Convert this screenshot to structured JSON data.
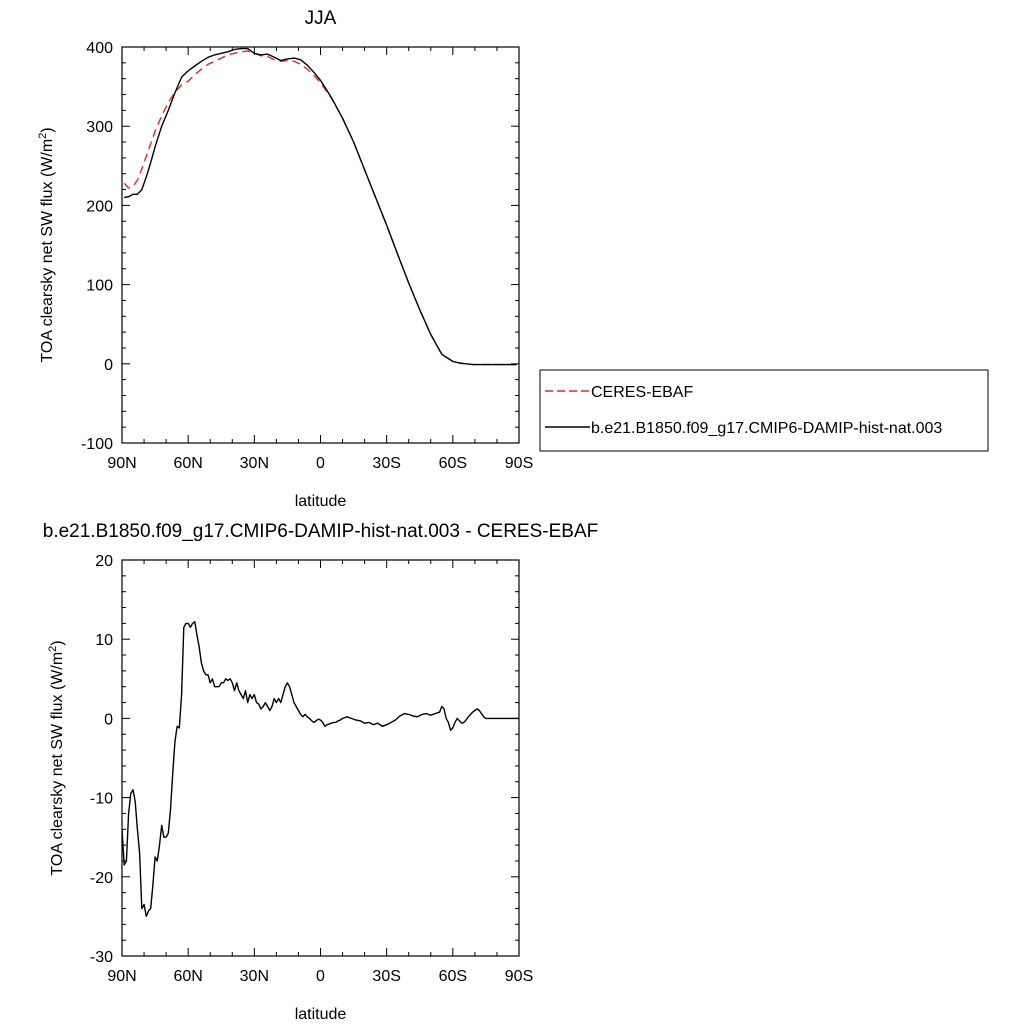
{
  "chart_data": [
    {
      "type": "line",
      "title": "JJA",
      "xlabel": "latitude",
      "ylabel": "TOA clearsky net SW flux (W/m",
      "ylabel_sup": "2",
      "ylabel_close": ")",
      "xlim": [
        90,
        -90
      ],
      "ylim": [
        -100,
        400
      ],
      "xticks": [
        90,
        60,
        30,
        0,
        -30,
        -60,
        -90
      ],
      "xticklabels": [
        "90N",
        "60N",
        "30N",
        "0",
        "30S",
        "60S",
        "90S"
      ],
      "yticks": [
        -100,
        0,
        100,
        200,
        300,
        400
      ],
      "yticklabels": [
        "-100",
        "0",
        "100",
        "200",
        "300",
        "400"
      ],
      "legend_position": "right",
      "grid": false,
      "series": [
        {
          "name": "CERES-EBAF",
          "color": "#e8262b",
          "dash": "dashed",
          "x": [
            89,
            87,
            85,
            83,
            81,
            79,
            77,
            75,
            72,
            69,
            66,
            63,
            60,
            57,
            54,
            51,
            48,
            45,
            42,
            39,
            36,
            33,
            30,
            27,
            24,
            21,
            18,
            15,
            12,
            9,
            6,
            3,
            0,
            -5,
            -10,
            -15,
            -20,
            -25,
            -30,
            -35,
            -40,
            -45,
            -50,
            -55,
            -60,
            -63,
            -66,
            -69,
            -72,
            -75,
            -80,
            -85,
            -89
          ],
          "y": [
            228,
            222,
            224,
            232,
            246,
            262,
            278,
            294,
            313,
            330,
            343,
            352,
            357,
            365,
            372,
            378,
            382,
            386,
            390,
            392,
            394,
            395,
            392,
            389,
            388,
            384,
            382,
            383,
            382,
            378,
            372,
            364,
            355,
            335,
            310,
            280,
            245,
            210,
            175,
            138,
            102,
            68,
            37,
            12,
            3,
            1,
            0,
            -1,
            -1,
            -1,
            -1,
            -1,
            -1
          ]
        },
        {
          "name": "b.e21.B1850.f09_g17.CMIP6-DAMIP-hist-nat.003",
          "color": "#000000",
          "dash": "solid",
          "x": [
            89,
            87,
            85,
            83,
            81,
            79,
            77,
            75,
            72,
            69,
            66,
            63,
            60,
            57,
            54,
            51,
            48,
            45,
            42,
            39,
            36,
            33,
            30,
            27,
            24,
            21,
            18,
            15,
            12,
            9,
            6,
            3,
            0,
            -5,
            -10,
            -15,
            -20,
            -25,
            -30,
            -35,
            -40,
            -45,
            -50,
            -55,
            -60,
            -63,
            -66,
            -69,
            -72,
            -75,
            -80,
            -85,
            -89
          ],
          "y": [
            210,
            211,
            214,
            214,
            220,
            236,
            254,
            274,
            300,
            320,
            342,
            362,
            370,
            376,
            382,
            387,
            390,
            392,
            394,
            397,
            398,
            398,
            392,
            390,
            391,
            387,
            383,
            385,
            386,
            384,
            377,
            368,
            358,
            336,
            310,
            280,
            245,
            210,
            175,
            138,
            102,
            68,
            37,
            12,
            3,
            1,
            0,
            -1,
            -1,
            -1,
            -1,
            -1,
            -1
          ]
        }
      ]
    },
    {
      "type": "line",
      "title": "b.e21.B1850.f09_g17.CMIP6-DAMIP-hist-nat.003 - CERES-EBAF",
      "xlabel": "latitude",
      "ylabel": "TOA clearsky net SW flux (W/m",
      "ylabel_sup": "2",
      "ylabel_close": ")",
      "xlim": [
        90,
        -90
      ],
      "ylim": [
        -30,
        20
      ],
      "xticks": [
        90,
        60,
        30,
        0,
        -30,
        -60,
        -90
      ],
      "xticklabels": [
        "90N",
        "60N",
        "30N",
        "0",
        "30S",
        "60S",
        "90S"
      ],
      "yticks": [
        -30,
        -20,
        -10,
        0,
        10,
        20
      ],
      "yticklabels": [
        "-30",
        "-20",
        "-10",
        "0",
        "10",
        "20"
      ],
      "grid": false,
      "series": [
        {
          "name": "",
          "color": "#000000",
          "dash": "solid",
          "x": [
            90,
            89,
            88,
            87,
            86,
            85,
            84,
            83,
            82,
            81,
            80,
            79,
            78,
            77,
            76,
            75,
            74,
            73,
            72,
            71,
            70,
            69,
            68,
            67,
            66,
            65,
            64,
            63,
            62,
            61,
            60,
            59,
            58,
            57,
            56,
            55,
            54,
            53,
            52,
            51,
            50,
            49,
            48,
            47,
            46,
            45,
            44,
            43,
            42,
            41,
            40,
            39,
            38,
            37,
            36,
            35,
            34,
            33,
            32,
            31,
            30,
            29,
            28,
            27,
            26,
            25,
            24,
            23,
            22,
            21,
            20,
            19,
            18,
            17,
            16,
            15,
            14,
            13,
            12,
            11,
            10,
            9,
            8,
            7,
            6,
            5,
            4,
            3,
            2,
            1,
            0,
            -1,
            -2,
            -3,
            -4,
            -5,
            -6,
            -7,
            -8,
            -9,
            -10,
            -12,
            -14,
            -16,
            -18,
            -20,
            -22,
            -24,
            -26,
            -28,
            -30,
            -32,
            -34,
            -36,
            -38,
            -40,
            -42,
            -44,
            -46,
            -48,
            -50,
            -52,
            -54,
            -55,
            -56,
            -57,
            -58,
            -59,
            -60,
            -61,
            -62,
            -63,
            -64,
            -65,
            -66,
            -67,
            -68,
            -69,
            -70,
            -71,
            -72,
            -73,
            -74,
            -75,
            -76,
            -77,
            -78,
            -80,
            -82,
            -84,
            -86,
            -88,
            -90
          ],
          "y": [
            -14.0,
            -18.5,
            -18.0,
            -12.0,
            -9.5,
            -9.0,
            -10.5,
            -14.0,
            -17.0,
            -24.0,
            -23.5,
            -25.0,
            -24.3,
            -24.0,
            -21.0,
            -17.5,
            -18.0,
            -16.0,
            -13.5,
            -15.0,
            -15.0,
            -14.5,
            -11.5,
            -7.0,
            -3.0,
            -1.0,
            -1.2,
            3.0,
            11.5,
            12.0,
            12.0,
            11.5,
            12.0,
            12.2,
            10.5,
            9.0,
            7.0,
            6.0,
            5.5,
            5.5,
            4.5,
            5.0,
            4.0,
            4.0,
            4.0,
            4.5,
            4.5,
            5.0,
            4.8,
            5.0,
            4.5,
            3.5,
            4.5,
            3.5,
            3.0,
            2.5,
            3.5,
            2.0,
            3.0,
            2.5,
            3.0,
            2.0,
            1.8,
            1.2,
            1.5,
            2.0,
            1.5,
            1.0,
            1.5,
            2.5,
            2.0,
            2.5,
            2.0,
            3.0,
            4.0,
            4.5,
            4.0,
            3.0,
            2.0,
            1.5,
            1.0,
            0.5,
            0.2,
            0.5,
            0.2,
            0.0,
            -0.3,
            -0.5,
            -0.3,
            -0.1,
            -0.2,
            -0.5,
            -1.0,
            -0.8,
            -0.7,
            -0.6,
            -0.5,
            -0.5,
            -0.3,
            -0.2,
            0.0,
            0.2,
            0.0,
            -0.2,
            -0.3,
            -0.6,
            -0.5,
            -0.8,
            -0.6,
            -1.0,
            -0.8,
            -0.5,
            -0.2,
            0.3,
            0.6,
            0.5,
            0.3,
            0.2,
            0.5,
            0.6,
            0.4,
            0.6,
            0.8,
            1.5,
            1.2,
            0.0,
            -0.5,
            -1.5,
            -1.2,
            -0.5,
            0.0,
            -0.3,
            -0.6,
            -0.5,
            -0.2,
            0.2,
            0.5,
            0.8,
            1.0,
            1.2,
            1.0,
            0.6,
            0.2,
            0.0,
            0.0,
            0.0,
            0.0,
            0.0,
            0.0,
            0.0,
            0.0,
            0.0,
            0.0
          ]
        }
      ]
    }
  ]
}
